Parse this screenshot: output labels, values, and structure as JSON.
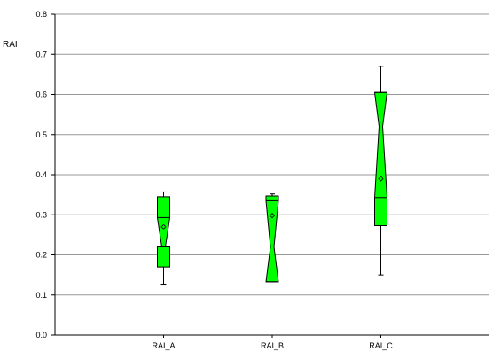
{
  "chart_data": {
    "type": "boxplot",
    "title": "",
    "xlabel": "",
    "ylabel": "RAI",
    "ylim": [
      0,
      0.8
    ],
    "yticks": [
      0.0,
      0.1,
      0.2,
      0.3,
      0.4,
      0.5,
      0.6,
      0.7,
      0.8
    ],
    "ytick_labels": [
      "0.0",
      "0.1",
      "0.2",
      "0.3",
      "0.4",
      "0.5",
      "0.6",
      "0.7",
      "0.8"
    ],
    "grid": true,
    "box_color": "#00ff00",
    "categories": [
      "RAI_A",
      "RAI_B",
      "RAI_C"
    ],
    "boxes": [
      {
        "min": 0.127,
        "q1": 0.17,
        "median": 0.22,
        "q3": 0.345,
        "max": 0.357,
        "mean": 0.27,
        "notch_low": 0.22,
        "notch_high": 0.293
      },
      {
        "min": 0.133,
        "q1": 0.133,
        "median": 0.22,
        "q3": 0.347,
        "max": 0.352,
        "mean": 0.298,
        "notch_low": 0.133,
        "notch_high": 0.335
      },
      {
        "min": 0.15,
        "q1": 0.273,
        "median": 0.52,
        "q3": 0.605,
        "max": 0.67,
        "mean": 0.39,
        "notch_low": 0.343,
        "notch_high": 0.605
      }
    ]
  }
}
